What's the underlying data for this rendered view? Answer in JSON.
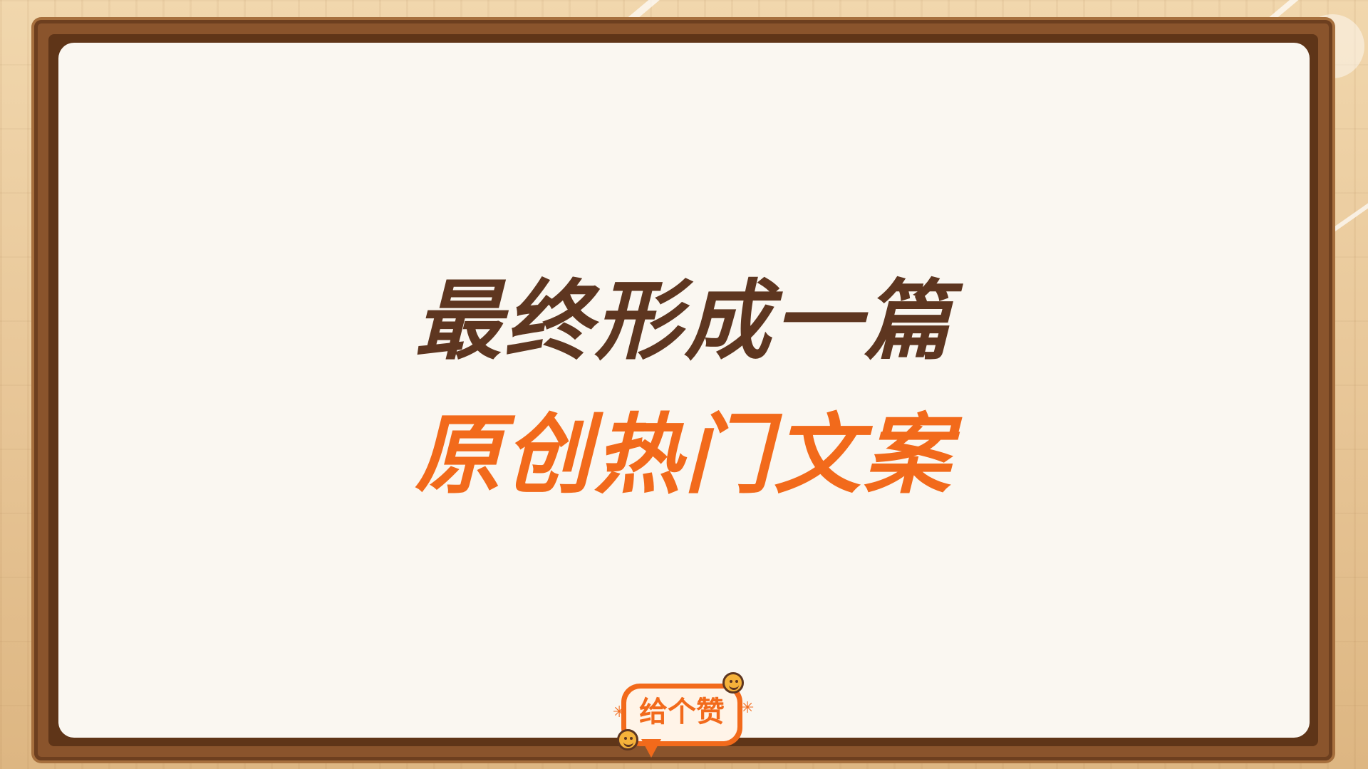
{
  "headline": {
    "line1": "最终形成一篇",
    "line2": "原创热门文案"
  },
  "like_badge": {
    "label": "给个赞"
  },
  "colors": {
    "line1": "#5e3620",
    "line2": "#f26a1b",
    "board": "#faf7f1",
    "frame": "#8a542c"
  },
  "icons": [
    "smiley-icon",
    "sparkle-icon"
  ]
}
